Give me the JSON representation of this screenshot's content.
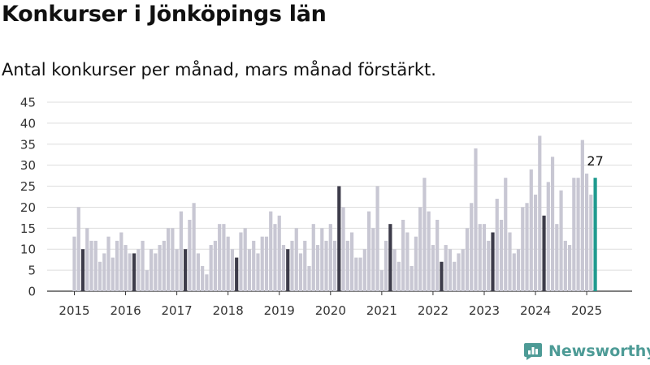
{
  "title": "Konkurser i Jönköpings län",
  "subtitle": "Antal konkurser per månad, mars månad förstärkt.",
  "brand": {
    "name": "Newsworthy",
    "icon": "newsworthy-logo-icon"
  },
  "colors": {
    "bar": "#c8c7d3",
    "highlight": "#3d3c4a",
    "latest": "#1f9a8f",
    "grid": "#dddddd"
  },
  "chart_data": {
    "type": "bar",
    "title": "Konkurser i Jönköpings län",
    "subtitle": "Antal konkurser per månad, mars månad förstärkt.",
    "xlabel": "",
    "ylabel": "",
    "ylim": [
      0,
      45
    ],
    "y_ticks": [
      0,
      5,
      10,
      15,
      20,
      25,
      30,
      35,
      40,
      45
    ],
    "grid": true,
    "legend": "none",
    "x_ticks": [
      "2015",
      "2016",
      "2017",
      "2018",
      "2019",
      "2020",
      "2021",
      "2022",
      "2023",
      "2024",
      "2025"
    ],
    "start": "2015-01",
    "end": "2025-03",
    "highlight_month": "mars",
    "annotation": {
      "month": "2025-03",
      "label": "27"
    },
    "values": [
      13,
      20,
      10,
      15,
      12,
      12,
      7,
      9,
      13,
      8,
      12,
      14,
      11,
      9,
      9,
      10,
      12,
      5,
      10,
      9,
      11,
      12,
      15,
      15,
      10,
      19,
      10,
      17,
      21,
      9,
      6,
      4,
      11,
      12,
      16,
      16,
      13,
      10,
      8,
      14,
      15,
      10,
      12,
      9,
      13,
      13,
      19,
      16,
      18,
      11,
      10,
      12,
      15,
      9,
      12,
      6,
      16,
      11,
      15,
      12,
      16,
      12,
      25,
      20,
      12,
      14,
      8,
      8,
      10,
      19,
      15,
      25,
      5,
      12,
      16,
      10,
      7,
      17,
      14,
      6,
      13,
      20,
      27,
      19,
      11,
      17,
      7,
      11,
      10,
      7,
      9,
      10,
      15,
      21,
      34,
      16,
      16,
      12,
      14,
      22,
      17,
      27,
      14,
      9,
      10,
      20,
      21,
      29,
      23,
      37,
      18,
      26,
      32,
      16,
      24,
      12,
      11,
      27,
      27,
      36,
      28,
      23,
      27
    ]
  }
}
